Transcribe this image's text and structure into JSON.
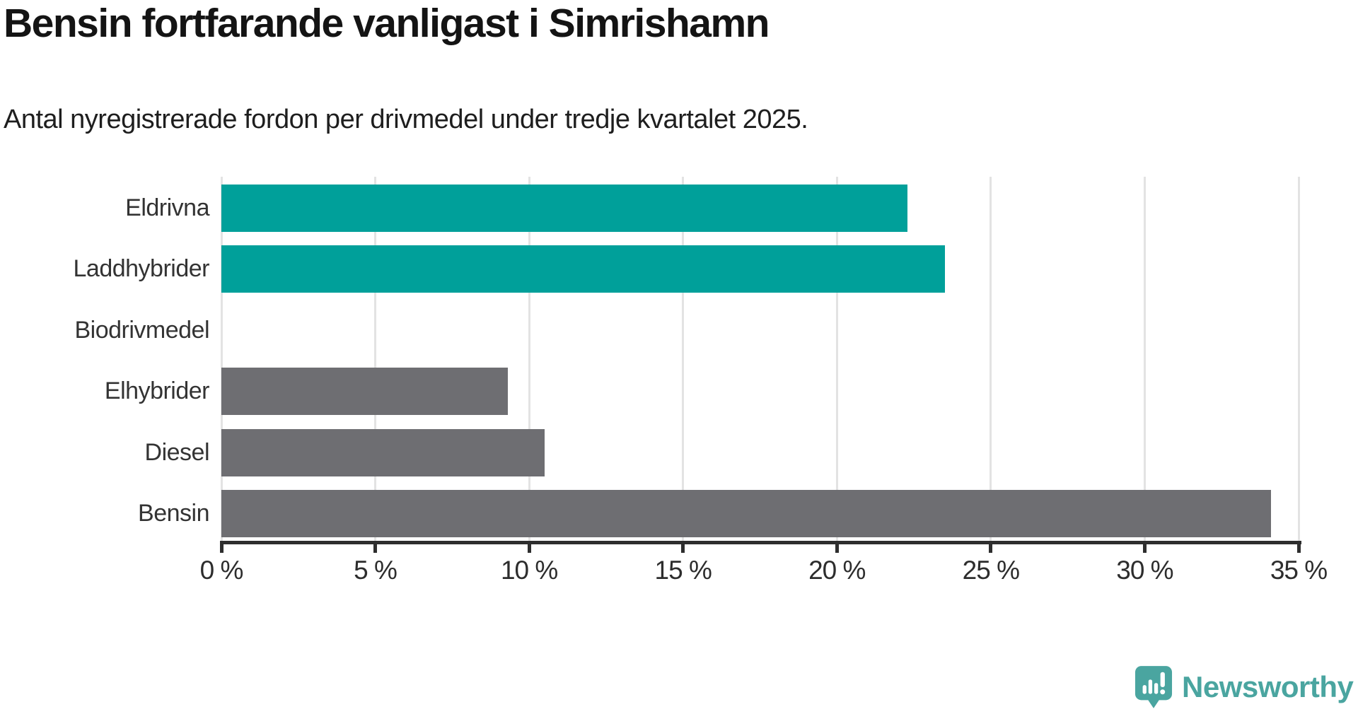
{
  "title": "Bensin fortfarande vanligast i Simrishamn",
  "subtitle": "Antal nyregistrerade fordon per drivmedel under tredje kvartalet 2025.",
  "chart_data": {
    "type": "bar",
    "orientation": "horizontal",
    "title": "Bensin fortfarande vanligast i Simrishamn",
    "subtitle": "Antal nyregistrerade fordon per drivmedel under tredje kvartalet 2025.",
    "categories": [
      "Eldrivna",
      "Laddhybrider",
      "Biodrivmedel",
      "Elhybrider",
      "Diesel",
      "Bensin"
    ],
    "values": [
      22.3,
      23.5,
      0,
      9.3,
      10.5,
      34.1
    ],
    "bar_colors": [
      "#00a09a",
      "#00a09a",
      null,
      "#6e6e72",
      "#6e6e72",
      "#6e6e72"
    ],
    "xlim": [
      0,
      35
    ],
    "x_ticks": [
      0,
      5,
      10,
      15,
      20,
      25,
      30,
      35
    ],
    "x_tick_labels": [
      "0 %",
      "5 %",
      "10 %",
      "15 %",
      "20 %",
      "25 %",
      "30 %",
      "35 %"
    ],
    "xlabel": "",
    "ylabel": "",
    "grid": true,
    "legend": "none"
  },
  "colors": {
    "highlight_bar": "#00a09a",
    "default_bar": "#6e6e72",
    "gridline": "#e3e3e3",
    "axis": "#2e2e2e",
    "text": "#333333"
  },
  "branding": {
    "logo_text": "Newsworthy",
    "logo_color": "#4aa5a0",
    "icon": "newsworthy-speech-bubble-chart-icon"
  }
}
